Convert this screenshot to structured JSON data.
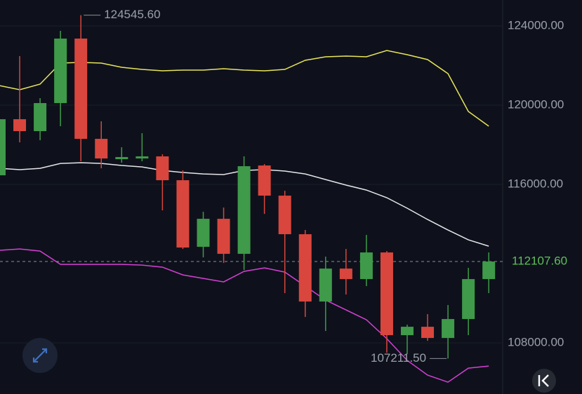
{
  "chart_data": {
    "type": "candlestick",
    "ylim": [
      105420,
      125310
    ],
    "yticks": [
      {
        "value": 108000,
        "label": "108000.00"
      },
      {
        "value": 116000,
        "label": "116000.00"
      },
      {
        "value": 120000,
        "label": "120000.00"
      },
      {
        "value": 124000,
        "label": "124000.00"
      }
    ],
    "grid": true,
    "up_color": "#3f9a4a",
    "down_color": "#d9463d",
    "open": [
      116460,
      119292,
      118690,
      120106,
      123363,
      118301,
      117274,
      117310,
      117416,
      116212,
      112850,
      114265,
      112496,
      116956,
      115434,
      113487,
      110088,
      111752,
      111221,
      112566,
      108389,
      108814,
      108248,
      109204,
      111221
    ],
    "high": [
      119469,
      122478,
      120354,
      123753,
      124545.6,
      119186,
      117876,
      118584,
      117522,
      116708,
      114619,
      114832,
      117416,
      117027,
      115681,
      113699,
      112354,
      112743,
      113451,
      112637,
      108920,
      109451,
      109912,
      111788,
      112566
    ],
    "low": [
      116283,
      118124,
      118230,
      118938,
      117168,
      116814,
      117097,
      117168,
      114690,
      112743,
      112319,
      112035,
      111681,
      114513,
      110513,
      109310,
      108602,
      110442,
      110867,
      107504,
      107434,
      108106,
      107211.5,
      108389,
      110513
    ],
    "close": [
      119292,
      118690,
      120106,
      123363,
      118301,
      117310,
      117381,
      117416,
      116212,
      112814,
      114265,
      112496,
      116920,
      115434,
      113487,
      110088,
      111752,
      111221,
      112566,
      108389,
      108814,
      108248,
      109204,
      111221,
      112107.6
    ],
    "lines": [
      {
        "color": "#e8e45a",
        "values": [
          120992,
          120779,
          121062,
          122124,
          122160,
          122124,
          121912,
          121806,
          121735,
          121770,
          121770,
          121841,
          121770,
          121735,
          121806,
          122266,
          122443,
          122478,
          122443,
          122762,
          122549,
          122301,
          121593,
          119682,
          118938
        ]
      },
      {
        "color": "#e6e6ea",
        "values": [
          116814,
          116744,
          116814,
          117062,
          117097,
          117062,
          116956,
          116885,
          116708,
          116602,
          116531,
          116496,
          116708,
          116744,
          116673,
          116531,
          116248,
          115965,
          115717,
          115328,
          114797,
          114230,
          113699,
          113204,
          112885
        ]
      },
      {
        "color": "#d640d6",
        "values": [
          112673,
          112743,
          112637,
          111965,
          111965,
          111965,
          111965,
          111929,
          111823,
          111434,
          111257,
          111080,
          111611,
          111788,
          111575,
          110867,
          110159,
          109664,
          109168,
          108212,
          107115,
          106372,
          106018,
          106726,
          106832
        ]
      }
    ],
    "annotations": [
      {
        "value": 124545.6,
        "label": "124545.60"
      },
      {
        "value": 107211.5,
        "label": "107211.50"
      }
    ],
    "last_price": {
      "value": 112107.6,
      "label": "112107.60"
    }
  }
}
